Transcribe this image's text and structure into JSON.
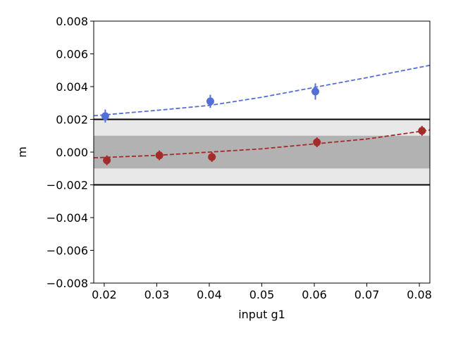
{
  "chart_data": {
    "type": "scatter",
    "title": "",
    "xlabel": "input g1",
    "ylabel": "m",
    "xlim": [
      0.018,
      0.082
    ],
    "ylim": [
      -0.008,
      0.008
    ],
    "x_ticks": [
      0.02,
      0.03,
      0.04,
      0.05,
      0.06,
      0.07,
      0.08
    ],
    "x_tick_labels": [
      "0.02",
      "0.03",
      "0.04",
      "0.05",
      "0.06",
      "0.07",
      "0.08"
    ],
    "y_ticks": [
      -0.008,
      -0.006,
      -0.004,
      -0.002,
      0.0,
      0.002,
      0.004,
      0.006,
      0.008
    ],
    "y_tick_labels": [
      "−0.008",
      "−0.006",
      "−0.004",
      "−0.002",
      "0.000",
      "0.002",
      "0.004",
      "0.006",
      "0.008"
    ],
    "grid": false,
    "bands": [
      {
        "y0": -0.002,
        "y1": 0.002,
        "color": "#e8e8e8"
      },
      {
        "y0": -0.001,
        "y1": 0.001,
        "color": "#b2b2b2"
      }
    ],
    "hlines": [
      {
        "y": 0.002,
        "color": "#000000"
      },
      {
        "y": -0.002,
        "color": "#000000"
      }
    ],
    "series": [
      {
        "color": "#5470d6",
        "points": [
          {
            "x": 0.0202,
            "y": 0.0022,
            "err": 0.0004
          },
          {
            "x": 0.0402,
            "y": 0.0031,
            "err": 0.0004
          },
          {
            "x": 0.0602,
            "y": 0.0037,
            "err": 0.0005
          }
        ],
        "fit": [
          [
            0.018,
            0.00222
          ],
          [
            0.03,
            0.00255
          ],
          [
            0.04,
            0.00285
          ],
          [
            0.05,
            0.00335
          ],
          [
            0.06,
            0.00395
          ],
          [
            0.07,
            0.00455
          ],
          [
            0.082,
            0.0053
          ]
        ]
      },
      {
        "color": "#a52a2a",
        "points": [
          {
            "x": 0.0205,
            "y": -0.0005,
            "err": 0.0003
          },
          {
            "x": 0.0305,
            "y": -0.0002,
            "err": 0.0003
          },
          {
            "x": 0.0405,
            "y": -0.0003,
            "err": 0.0003
          },
          {
            "x": 0.0605,
            "y": 0.0006,
            "err": 0.0003
          },
          {
            "x": 0.0805,
            "y": 0.0013,
            "err": 0.0003
          }
        ],
        "fit": [
          [
            0.018,
            -0.00035
          ],
          [
            0.03,
            -0.0002
          ],
          [
            0.04,
            0.0
          ],
          [
            0.05,
            0.0002
          ],
          [
            0.06,
            0.0005
          ],
          [
            0.07,
            0.0008
          ],
          [
            0.082,
            0.00135
          ]
        ]
      }
    ]
  }
}
